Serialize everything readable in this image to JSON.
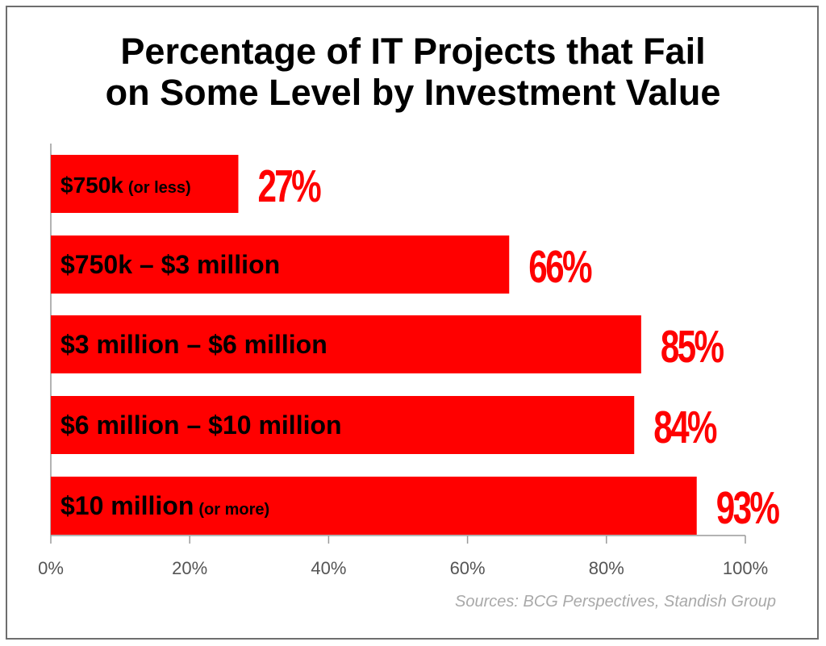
{
  "title_lines": [
    "Percentage of IT Projects that Fail",
    "on Some Level by Investment Value"
  ],
  "source": "Sources: BCG Perspectives, Standish Group",
  "colors": {
    "bar": "#ff0000",
    "value_label": "#ff0000",
    "bar_text": "#000000",
    "axis": "#9a9a9a",
    "tick_label": "#555555",
    "source": "#a9a9a9"
  },
  "chart_data": {
    "type": "bar",
    "orientation": "horizontal",
    "title": "Percentage of IT Projects that Fail on Some Level by Investment Value",
    "categories": [
      {
        "main": "$750k",
        "sub": "(or less)"
      },
      {
        "main": "$750k – $3 million",
        "sub": ""
      },
      {
        "main": "$3 million – $6 million",
        "sub": ""
      },
      {
        "main": "$6 million – $10 million",
        "sub": ""
      },
      {
        "main": "$10 million",
        "sub": "(or more)"
      }
    ],
    "values": [
      27,
      66,
      85,
      84,
      93
    ],
    "value_labels": [
      "27%",
      "66%",
      "85%",
      "84%",
      "93%"
    ],
    "xlim": [
      0,
      100
    ],
    "x_ticks": [
      0,
      20,
      40,
      60,
      80,
      100
    ],
    "x_tick_labels": [
      "0%",
      "20%",
      "40%",
      "60%",
      "80%",
      "100%"
    ],
    "xlabel": "",
    "ylabel": "",
    "grid": false,
    "legend": "none"
  }
}
